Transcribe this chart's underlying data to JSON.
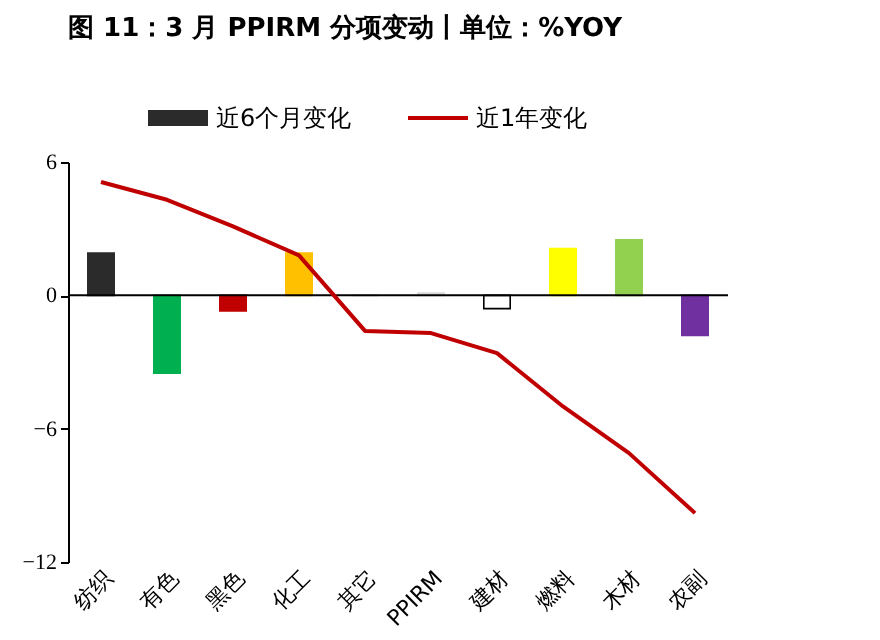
{
  "chart_data": {
    "type": "bar",
    "title": "图 11：3 月 PPIRM 分项变动丨单位：%YOY",
    "categories": [
      "纺织",
      "有色",
      "黑色",
      "化工",
      "其它",
      "PPIRM",
      "建材",
      "燃料",
      "木材",
      "农副"
    ],
    "series": [
      {
        "name": "近6个月变化",
        "type": "bar",
        "color": "#2b2b2b",
        "colors": [
          "#2b2b2b",
          "#00b050",
          "#c00000",
          "#ffc000",
          "#bfbfbf",
          "#d9d9d9",
          "#ffffff",
          "#ffff00",
          "#92d050",
          "#7030a0"
        ],
        "values": [
          1.9,
          -3.5,
          -0.7,
          1.9,
          0,
          0.1,
          -0.6,
          2.1,
          2.5,
          -1.8
        ]
      },
      {
        "name": "近1年变化",
        "type": "line",
        "color": "#c00000",
        "values": [
          5.1,
          4.3,
          3.1,
          1.8,
          -1.6,
          -1.7,
          -2.6,
          -5.0,
          -7.1,
          -9.8
        ]
      }
    ],
    "ref_lines": [
      {
        "axis": "y",
        "value": 0,
        "color": "#000000"
      }
    ],
    "ylim": [
      -12,
      6
    ],
    "yticks": [
      -12,
      -6,
      0,
      6
    ],
    "grid": false,
    "legend": "top",
    "marker": "none",
    "line_style": "solid"
  }
}
